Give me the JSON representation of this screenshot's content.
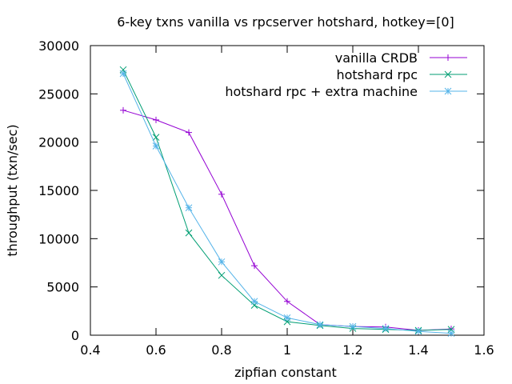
{
  "chart_data": {
    "type": "line",
    "title": "6-key txns vanilla vs rpcserver hotshard, hotkey=[0]",
    "xlabel": "zipfian constant",
    "ylabel": "throughput (txn/sec)",
    "xlim": [
      0.4,
      1.6
    ],
    "ylim": [
      0,
      30000
    ],
    "xticks": [
      "0.4",
      "0.6",
      "0.8",
      "1",
      "1.2",
      "1.4",
      "1.6"
    ],
    "yticks": [
      "0",
      "5000",
      "10000",
      "15000",
      "20000",
      "25000",
      "30000"
    ],
    "grid": false,
    "legend_position": "top-right",
    "x": [
      0.5,
      0.6,
      0.7,
      0.8,
      0.9,
      1.0,
      1.1,
      1.2,
      1.3,
      1.4,
      1.5
    ],
    "series": [
      {
        "name": "vanilla CRDB",
        "color": "#9400d3",
        "marker": "plus",
        "values": [
          23300,
          22300,
          21000,
          14600,
          7200,
          3500,
          1100,
          900,
          850,
          500,
          650
        ]
      },
      {
        "name": "hotshard rpc",
        "color": "#009e73",
        "marker": "cross",
        "values": [
          27500,
          20500,
          10600,
          6200,
          3100,
          1400,
          1000,
          700,
          600,
          500,
          600
        ]
      },
      {
        "name": "hotshard rpc + extra machine",
        "color": "#56b4e9",
        "marker": "star",
        "values": [
          27100,
          19600,
          13200,
          7600,
          3500,
          1800,
          1100,
          900,
          700,
          400,
          200
        ]
      }
    ]
  }
}
